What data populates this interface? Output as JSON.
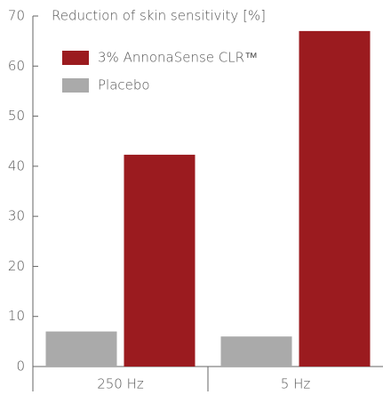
{
  "chart_data": {
    "type": "bar",
    "title": "Reduction of skin sensitivity [%]",
    "categories": [
      "250 Hz",
      "5 Hz"
    ],
    "series": [
      {
        "name": "3% AnnonaSense CLR™",
        "color": "#9b1b1f",
        "values": [
          42.3,
          67
        ]
      },
      {
        "name": "Placebo",
        "color": "#aaaaaa",
        "values": [
          7,
          6
        ]
      }
    ],
    "ylim": [
      0,
      70
    ],
    "yticks": [
      0,
      10,
      20,
      30,
      40,
      50,
      60,
      70
    ],
    "grid": false
  }
}
